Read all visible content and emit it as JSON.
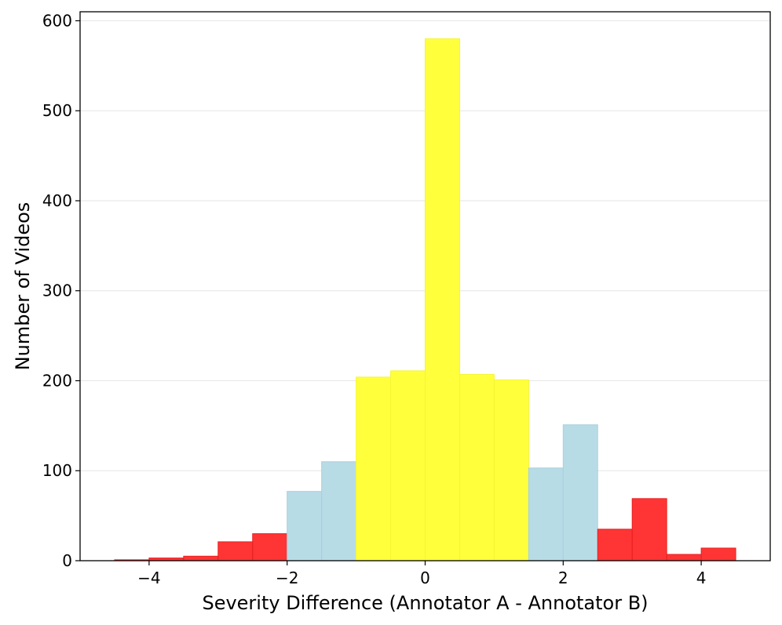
{
  "chart_data": {
    "type": "bar",
    "title": "",
    "xlabel": "Severity Difference (Annotator A - Annotator B)",
    "ylabel": "Number of Videos",
    "xlim": [
      -5.0,
      5.0
    ],
    "ylim": [
      0,
      610
    ],
    "xticks": [
      -4,
      -2,
      0,
      2,
      4
    ],
    "xtick_labels": [
      "−4",
      "−2",
      "0",
      "2",
      "4"
    ],
    "yticks": [
      0,
      100,
      200,
      300,
      400,
      500,
      600
    ],
    "ytick_labels": [
      "0",
      "100",
      "200",
      "300",
      "400",
      "500",
      "600"
    ],
    "grid": "horizontal",
    "bin_width": 0.5,
    "bins": [
      {
        "x_start": -4.5,
        "value": 1,
        "group": "red"
      },
      {
        "x_start": -4.0,
        "value": 3,
        "group": "red"
      },
      {
        "x_start": -3.5,
        "value": 5,
        "group": "red"
      },
      {
        "x_start": -3.0,
        "value": 21,
        "group": "red"
      },
      {
        "x_start": -2.5,
        "value": 30,
        "group": "red"
      },
      {
        "x_start": -2.0,
        "value": 77,
        "group": "blue"
      },
      {
        "x_start": -1.5,
        "value": 110,
        "group": "blue"
      },
      {
        "x_start": -1.0,
        "value": 204,
        "group": "yellow"
      },
      {
        "x_start": -0.5,
        "value": 211,
        "group": "yellow"
      },
      {
        "x_start": 0.0,
        "value": 580,
        "group": "yellow"
      },
      {
        "x_start": 0.5,
        "value": 207,
        "group": "yellow"
      },
      {
        "x_start": 1.0,
        "value": 201,
        "group": "yellow"
      },
      {
        "x_start": 1.5,
        "value": 103,
        "group": "blue"
      },
      {
        "x_start": 2.0,
        "value": 151,
        "group": "blue"
      },
      {
        "x_start": 2.5,
        "value": 35,
        "group": "red"
      },
      {
        "x_start": 3.0,
        "value": 69,
        "group": "red"
      },
      {
        "x_start": 3.5,
        "value": 7,
        "group": "red"
      },
      {
        "x_start": 4.0,
        "value": 14,
        "group": "red"
      }
    ],
    "colors": {
      "red": "#ff2a2a",
      "blue": "#b8dce6",
      "yellow": "#ffff3c",
      "axis": "#000000",
      "grid": "#e6e6e6"
    }
  }
}
